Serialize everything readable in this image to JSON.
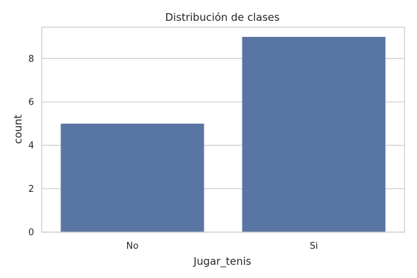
{
  "chart_data": {
    "type": "bar",
    "title": "Distribución de clases",
    "xlabel": "Jugar_tenis",
    "ylabel": "count",
    "categories": [
      "No",
      "Si"
    ],
    "values": [
      5,
      9
    ],
    "ylim": [
      0,
      9.45
    ],
    "yticks": [
      0,
      2,
      4,
      6,
      8
    ],
    "grid": "y",
    "legend": "none",
    "bar_color": "#5975a4",
    "grid_color": "#cccccc",
    "spine_color": "#cccccc"
  }
}
